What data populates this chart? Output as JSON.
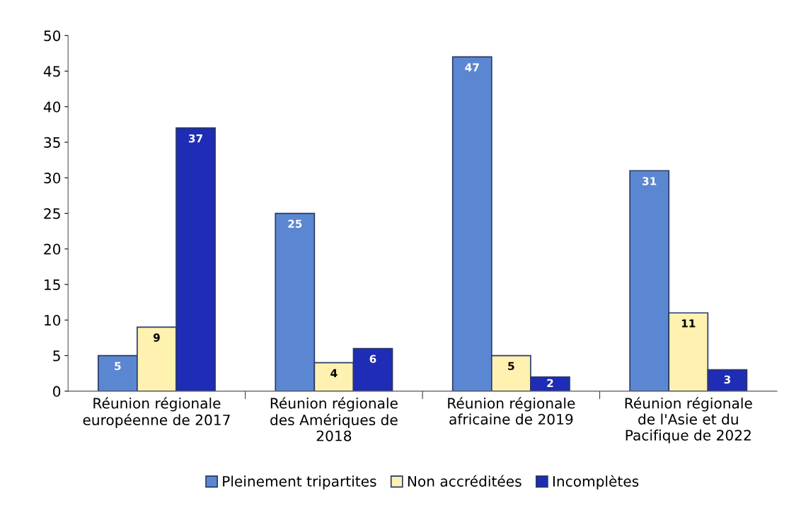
{
  "chart_data": {
    "type": "bar",
    "categories": [
      "Réunion régionale\neuropéenne de 2017",
      "Réunion régionale\ndes Amériques de\n2018",
      "Réunion régionale\nafricaine de 2019",
      "Réunion régionale\nde l'Asie et du\nPacifique de 2022"
    ],
    "series": [
      {
        "name": "Pleinement tripartites",
        "color": "#5b87d2",
        "values": [
          5,
          25,
          47,
          31
        ]
      },
      {
        "name": "Non accréditées",
        "color": "#fff1b0",
        "values": [
          9,
          4,
          5,
          11
        ]
      },
      {
        "name": "Incomplètes",
        "color": "#1f2cb5",
        "values": [
          37,
          6,
          2,
          3
        ]
      }
    ],
    "ylim": [
      0,
      50
    ],
    "yticks": [
      0,
      5,
      10,
      15,
      20,
      25,
      30,
      35,
      40,
      45,
      50
    ],
    "data_labels": true,
    "grid": false,
    "legend": "bottom"
  }
}
